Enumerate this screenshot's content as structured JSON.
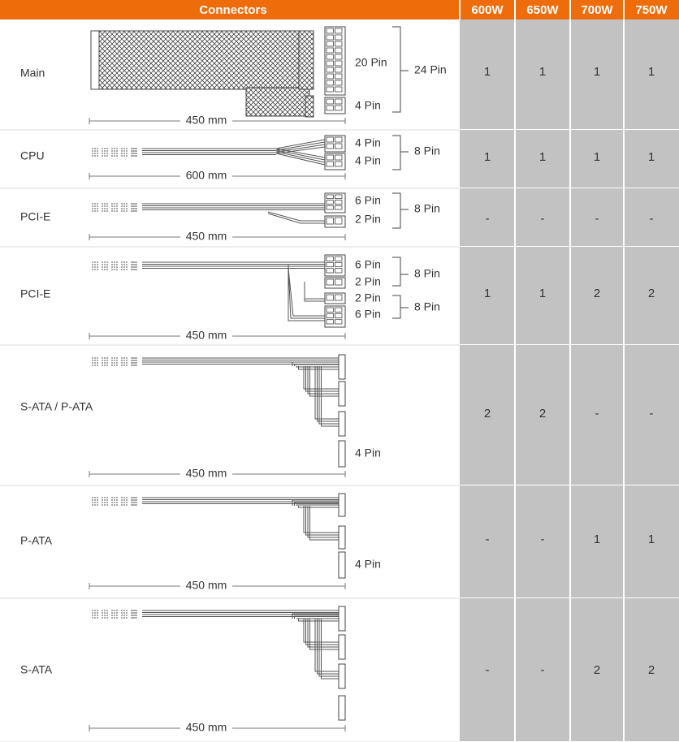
{
  "header": {
    "title": "Connectors",
    "columns": [
      "600W",
      "650W",
      "700W",
      "750W"
    ]
  },
  "rows": [
    {
      "name": "Main",
      "pins": [
        "20 Pin",
        "4 Pin"
      ],
      "totals": [
        "24 Pin"
      ],
      "length": "450 mm",
      "values": [
        "1",
        "1",
        "1",
        "1"
      ]
    },
    {
      "name": "CPU",
      "pins": [
        "4 Pin",
        "4 Pin"
      ],
      "totals": [
        "8 Pin"
      ],
      "length": "600 mm",
      "values": [
        "1",
        "1",
        "1",
        "1"
      ]
    },
    {
      "name": "PCI-E",
      "pins": [
        "6 Pin",
        "2 Pin"
      ],
      "totals": [
        "8 Pin"
      ],
      "length": "450 mm",
      "values": [
        "-",
        "-",
        "-",
        "-"
      ]
    },
    {
      "name": "PCI-E",
      "pins": [
        "6 Pin",
        "2 Pin",
        "2 Pin",
        "6 Pin"
      ],
      "totals": [
        "8 Pin",
        "8 Pin"
      ],
      "length": "450 mm",
      "values": [
        "1",
        "1",
        "2",
        "2"
      ]
    },
    {
      "name": "S-ATA / P-ATA",
      "pins": [
        "4 Pin"
      ],
      "totals": [],
      "length": "450 mm",
      "values": [
        "2",
        "2",
        "-",
        "-"
      ]
    },
    {
      "name": "P-ATA",
      "pins": [
        "4 Pin"
      ],
      "totals": [],
      "length": "450 mm",
      "values": [
        "-",
        "-",
        "1",
        "1"
      ]
    },
    {
      "name": "S-ATA",
      "pins": [],
      "totals": [],
      "length": "450 mm",
      "values": [
        "-",
        "-",
        "2",
        "2"
      ]
    }
  ]
}
